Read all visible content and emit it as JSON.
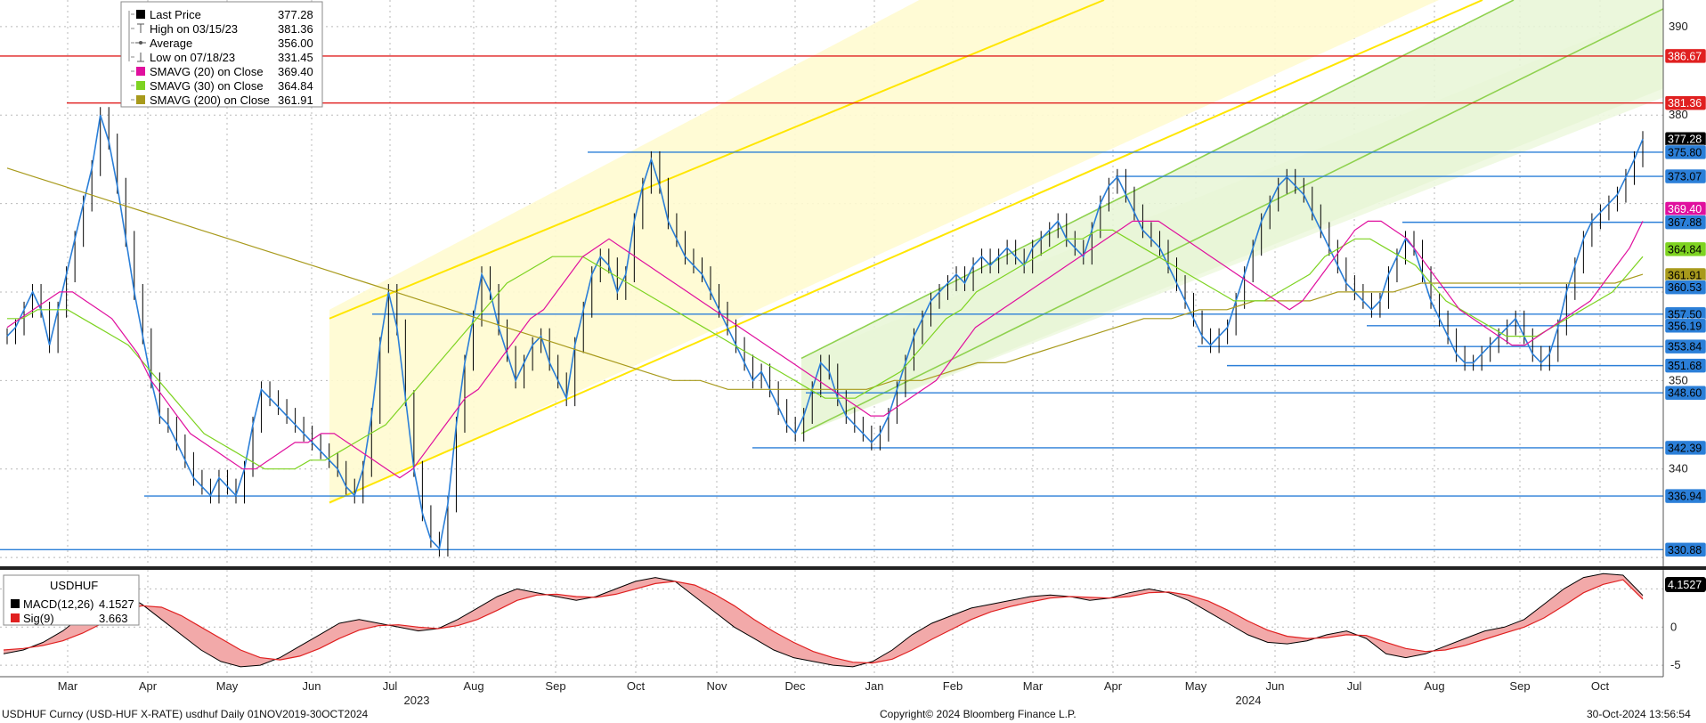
{
  "footer": {
    "left": "USDHUF Curncy (USD-HUF X-RATE) usdhuf  Daily 01NOV2019-30OCT2024",
    "center": "Copyright© 2024 Bloomberg Finance L.P.",
    "right": "30-Oct-2024 13:56:54"
  },
  "legend": {
    "rows": [
      {
        "label": "Last Price",
        "value": "377.28",
        "marker": "square",
        "color": "#000000"
      },
      {
        "label": "High on 03/15/23",
        "value": "381.36",
        "marker": "high",
        "color": "#555555"
      },
      {
        "label": "Average",
        "value": "356.00",
        "marker": "avg",
        "color": "#555555"
      },
      {
        "label": "Low on 07/18/23",
        "value": "331.45",
        "marker": "low",
        "color": "#555555"
      },
      {
        "label": "SMAVG (20)  on Close",
        "value": "369.40",
        "marker": "square",
        "color": "#e0109e"
      },
      {
        "label": "SMAVG (30)  on Close",
        "value": "364.84",
        "marker": "square",
        "color": "#7ed321"
      },
      {
        "label": "SMAVG (200)  on Close",
        "value": "361.91",
        "marker": "square",
        "color": "#a89a1c"
      }
    ]
  },
  "macd_legend": {
    "title": "USDHUF",
    "rows": [
      {
        "label": "MACD(12,26)",
        "value": "4.1527",
        "color": "#000000"
      },
      {
        "label": "Sig(9)",
        "value": "3.663",
        "color": "#e02020"
      }
    ]
  },
  "chart_data": {
    "type": "line",
    "x_months": [
      "Mar",
      "Apr",
      "May",
      "Jun",
      "Jul",
      "Aug",
      "Sep",
      "Oct",
      "Nov",
      "Dec",
      "Jan",
      "Feb",
      "Mar",
      "Apr",
      "May",
      "Jun",
      "Jul",
      "Aug",
      "Sep",
      "Oct"
    ],
    "x_years": [
      "2023",
      "2024"
    ],
    "price_axis_ticks": [
      340,
      350,
      380,
      390
    ],
    "price_range": [
      329,
      393
    ],
    "macd_axis_ticks": [
      "0",
      "-5"
    ],
    "macd_range": [
      -6.5,
      7.5
    ],
    "price_series": [
      355,
      356,
      358,
      360,
      358,
      354,
      358,
      362,
      366,
      370,
      374,
      380,
      377,
      372,
      366,
      360,
      355,
      350,
      346,
      345,
      343,
      341,
      339,
      338,
      337,
      339,
      338,
      337,
      340,
      345,
      349,
      348,
      347,
      346,
      345,
      344,
      343,
      342,
      341,
      340,
      338,
      337,
      340,
      346,
      354,
      360,
      356,
      348,
      340,
      335,
      332,
      331,
      336,
      345,
      352,
      357,
      362,
      360,
      356,
      353,
      350,
      352,
      354,
      355,
      352,
      350,
      348,
      354,
      358,
      362,
      364,
      363,
      360,
      362,
      368,
      372,
      375,
      372,
      368,
      366,
      364,
      363,
      362,
      360,
      358,
      356,
      354,
      352,
      350,
      351,
      349,
      347,
      345,
      344,
      346,
      349,
      352,
      351,
      348,
      346,
      345,
      344,
      343,
      344,
      346,
      349,
      352,
      355,
      357,
      359,
      360,
      361,
      362,
      361,
      363,
      364,
      363,
      364,
      365,
      364,
      363,
      365,
      366,
      367,
      368,
      366,
      365,
      364,
      367,
      370,
      372,
      373,
      371,
      369,
      367,
      366,
      365,
      363,
      361,
      359,
      357,
      355,
      354,
      355,
      356,
      359,
      362,
      365,
      368,
      370,
      372,
      373,
      372,
      371,
      369,
      367,
      365,
      363,
      361,
      360,
      359,
      358,
      359,
      362,
      364,
      366,
      365,
      362,
      359,
      357,
      355,
      353,
      352,
      352,
      353,
      354,
      355,
      356,
      357,
      355,
      353,
      352,
      353,
      356,
      360,
      363,
      366,
      368,
      369,
      370,
      371,
      373,
      375,
      377.28
    ],
    "sma20": [
      356,
      357,
      358,
      359,
      360,
      360,
      359,
      358,
      357,
      355,
      353,
      350,
      348,
      346,
      344,
      343,
      342,
      341,
      340,
      340,
      341,
      342,
      343,
      343,
      344,
      344,
      343,
      342,
      341,
      340,
      339,
      340,
      342,
      344,
      346,
      348,
      349,
      351,
      353,
      355,
      357,
      358,
      360,
      362,
      364,
      365,
      366,
      365,
      364,
      363,
      362,
      361,
      360,
      359,
      358,
      357,
      356,
      355,
      354,
      353,
      352,
      351,
      350,
      349,
      348,
      347,
      346,
      346,
      347,
      348,
      349,
      350,
      352,
      354,
      356,
      357,
      358,
      359,
      360,
      361,
      362,
      363,
      364,
      365,
      366,
      367,
      368,
      368,
      368,
      367,
      366,
      365,
      364,
      363,
      362,
      361,
      360,
      359,
      358,
      359,
      361,
      363,
      365,
      367,
      368,
      368,
      367,
      366,
      364,
      362,
      360,
      358,
      357,
      356,
      355,
      354,
      354,
      355,
      356,
      357,
      358,
      359,
      361,
      363,
      365,
      368
    ],
    "sma30": [
      357,
      357,
      358,
      358,
      358,
      357,
      356,
      355,
      354,
      352,
      350,
      348,
      346,
      344,
      343,
      342,
      341,
      340,
      340,
      340,
      341,
      341,
      342,
      343,
      344,
      345,
      347,
      349,
      351,
      353,
      355,
      357,
      359,
      361,
      362,
      363,
      364,
      364,
      364,
      363,
      362,
      361,
      360,
      359,
      358,
      357,
      356,
      355,
      354,
      353,
      352,
      351,
      350,
      349,
      348,
      348,
      348,
      349,
      350,
      351,
      353,
      355,
      357,
      358,
      360,
      361,
      362,
      363,
      364,
      365,
      366,
      366,
      367,
      367,
      366,
      365,
      364,
      363,
      362,
      361,
      360,
      359,
      359,
      359,
      360,
      361,
      362,
      364,
      365,
      366,
      366,
      365,
      364,
      363,
      361,
      359,
      358,
      357,
      356,
      355,
      355,
      355,
      356,
      357,
      358,
      359,
      360,
      362,
      364
    ],
    "sma200": [
      374,
      373,
      372,
      371,
      370,
      369,
      368,
      367,
      366,
      365,
      364,
      363,
      362,
      361,
      360,
      359,
      358,
      357,
      356,
      355,
      354,
      353,
      352,
      351,
      350,
      350,
      349,
      349,
      349,
      349,
      349,
      349,
      350,
      350,
      351,
      352,
      352,
      353,
      354,
      355,
      356,
      357,
      357,
      358,
      358,
      359,
      359,
      359,
      360,
      360,
      360,
      361,
      361,
      361,
      361,
      361,
      361,
      361,
      361,
      362
    ],
    "macd": [
      -3.5,
      -3.0,
      -2.0,
      -0.5,
      1.5,
      3.5,
      4.5,
      3.0,
      1.0,
      -1.0,
      -3.0,
      -4.5,
      -5.2,
      -5.0,
      -4.0,
      -2.5,
      -1.0,
      0.5,
      1.0,
      0.5,
      0,
      -0.5,
      -0.2,
      1.0,
      2.5,
      4.0,
      5.0,
      4.5,
      4.0,
      3.5,
      4.0,
      5.0,
      6.0,
      6.5,
      6.0,
      4.0,
      2.0,
      0,
      -1.5,
      -3.0,
      -4.0,
      -4.5,
      -5.0,
      -5.2,
      -4.5,
      -3.0,
      -1.0,
      0.5,
      1.5,
      2.5,
      3.0,
      3.5,
      4.0,
      4.2,
      4.0,
      3.5,
      3.8,
      4.5,
      5.0,
      4.5,
      3.5,
      2.0,
      0.5,
      -1.0,
      -2.0,
      -2.2,
      -1.8,
      -1.0,
      -0.5,
      -1.5,
      -3.5,
      -4.0,
      -3.5,
      -2.5,
      -1.5,
      -0.5,
      0,
      1.0,
      3.0,
      5.0,
      6.5,
      7.0,
      6.8,
      4.15
    ],
    "signal": [
      -3.0,
      -2.8,
      -2.4,
      -1.8,
      -0.8,
      0.5,
      2.0,
      2.8,
      2.6,
      1.5,
      0,
      -1.5,
      -3.0,
      -4.0,
      -4.3,
      -3.8,
      -2.8,
      -1.5,
      -0.4,
      0.2,
      0.3,
      0,
      -0.2,
      0.2,
      1.0,
      2.2,
      3.5,
      4.2,
      4.3,
      4.0,
      3.9,
      4.3,
      5.0,
      5.7,
      6.0,
      5.5,
      4.3,
      2.8,
      1.0,
      -0.6,
      -2.0,
      -3.2,
      -4.0,
      -4.6,
      -4.7,
      -4.2,
      -3.0,
      -1.6,
      -0.3,
      1.0,
      2.0,
      2.7,
      3.3,
      3.8,
      4.0,
      3.9,
      3.8,
      4.0,
      4.5,
      4.6,
      4.2,
      3.4,
      2.2,
      0.8,
      -0.4,
      -1.2,
      -1.5,
      -1.4,
      -1.0,
      -1.1,
      -2.0,
      -2.8,
      -3.2,
      -3.0,
      -2.4,
      -1.6,
      -0.8,
      0,
      1.2,
      2.8,
      4.5,
      5.6,
      6.2,
      3.663
    ],
    "horizontal_levels": [
      {
        "label": "386.67",
        "value": 386.67,
        "color": "#e02020",
        "text_color": "#ffffff"
      },
      {
        "label": "381.36",
        "value": 381.36,
        "color": "#e02020",
        "text_color": "#ffffff"
      },
      {
        "label": "377.28",
        "value": 377.28,
        "color": "#000000",
        "text_color": "#ffffff"
      },
      {
        "label": "375.80",
        "value": 375.8,
        "color": "#2b7fd8",
        "text_color": "#000000"
      },
      {
        "label": "373.07",
        "value": 373.07,
        "color": "#2b7fd8",
        "text_color": "#000000"
      },
      {
        "label": "369.40",
        "value": 369.4,
        "color": "#e0109e",
        "text_color": "#ffffff"
      },
      {
        "label": "367.88",
        "value": 367.88,
        "color": "#2b7fd8",
        "text_color": "#000000"
      },
      {
        "label": "364.84",
        "value": 364.84,
        "color": "#7ed321",
        "text_color": "#000000"
      },
      {
        "label": "361.91",
        "value": 361.91,
        "color": "#a89a1c",
        "text_color": "#000000"
      },
      {
        "label": "360.53",
        "value": 360.53,
        "color": "#2b7fd8",
        "text_color": "#000000"
      },
      {
        "label": "357.50",
        "value": 357.5,
        "color": "#2b7fd8",
        "text_color": "#000000"
      },
      {
        "label": "356.19",
        "value": 356.19,
        "color": "#2b7fd8",
        "text_color": "#000000"
      },
      {
        "label": "353.84",
        "value": 353.84,
        "color": "#2b7fd8",
        "text_color": "#000000"
      },
      {
        "label": "351.68",
        "value": 351.68,
        "color": "#2b7fd8",
        "text_color": "#000000"
      },
      {
        "label": "348.60",
        "value": 348.6,
        "color": "#2b7fd8",
        "text_color": "#000000"
      },
      {
        "label": "342.39",
        "value": 342.39,
        "color": "#2b7fd8",
        "text_color": "#000000"
      },
      {
        "label": "336.94",
        "value": 336.94,
        "color": "#2b7fd8",
        "text_color": "#000000"
      },
      {
        "label": "330.88",
        "value": 330.88,
        "color": "#2b7fd8",
        "text_color": "#000000"
      }
    ],
    "macd_last_value": "4.1527",
    "colors": {
      "price": "#2b7fd8",
      "candle": "#000000",
      "sma20": "#e0109e",
      "sma30": "#7ed321",
      "sma200": "#a89a1c",
      "yellow_channel": "#ffe600",
      "green_channel": "#8fd14f",
      "macd": "#000000",
      "signal": "#e02020"
    }
  }
}
